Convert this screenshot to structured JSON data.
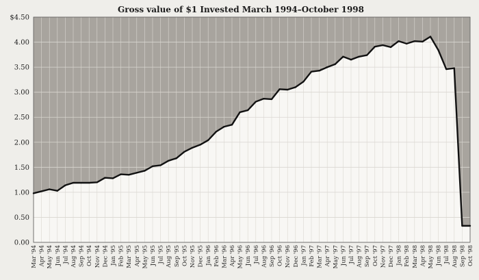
{
  "chart_data": {
    "type": "area",
    "title": "Gross value of $1 Invested March 1994–October 1998",
    "xlabel": "",
    "ylabel": "",
    "ylim": [
      0,
      4.5
    ],
    "y_ticks": [
      "0.00",
      "0.50",
      "1.00",
      "1.50",
      "2.00",
      "2.50",
      "3.00",
      "3.50",
      "4.00",
      "$4.50"
    ],
    "y_tick_values": [
      0,
      0.5,
      1.0,
      1.5,
      2.0,
      2.5,
      3.0,
      3.5,
      4.0,
      4.5
    ],
    "grid": true,
    "legend": "none",
    "colors": {
      "above_line": "#a8a49e",
      "below_line": "#f8f7f4",
      "line": "#111111",
      "grid": "#ffffff"
    },
    "categories": [
      "Mar '94",
      "Apr '94",
      "May '94",
      "Jun '94",
      "Jul '94",
      "Aug '94",
      "Sep '94",
      "Oct '94",
      "Nov '94",
      "Dec '94",
      "Jan '95",
      "Feb '95",
      "Mar '95",
      "Apr '95",
      "May '95",
      "Jun '95",
      "Jul '95",
      "Aug '95",
      "Sep '95",
      "Oct '95",
      "Nov '95",
      "Dec '95",
      "Jan '96",
      "Feb '96",
      "Mar '96",
      "Apr '96",
      "May '96",
      "Jun '96",
      "Jul '96",
      "Aug '96",
      "Sep '96",
      "Oct '96",
      "Nov '96",
      "Dec '96",
      "Jan '97",
      "Feb '97",
      "Mar '97",
      "Apr '97",
      "May '97",
      "Jun '97",
      "Jul '97",
      "Aug '97",
      "Sep '97",
      "Oct '97",
      "Nov '97",
      "Dec '97",
      "Jan '98",
      "Feb '98",
      "Mar '98",
      "Apr '98",
      "May '98",
      "Jun '98",
      "Jul '98",
      "Aug '98",
      "Sep '98",
      "Oct '98"
    ],
    "values": [
      0.98,
      1.02,
      1.06,
      1.03,
      1.14,
      1.19,
      1.19,
      1.19,
      1.2,
      1.29,
      1.28,
      1.36,
      1.35,
      1.39,
      1.43,
      1.52,
      1.54,
      1.63,
      1.68,
      1.81,
      1.89,
      1.95,
      2.04,
      2.21,
      2.31,
      2.35,
      2.6,
      2.64,
      2.81,
      2.87,
      2.86,
      3.06,
      3.05,
      3.1,
      3.21,
      3.41,
      3.43,
      3.5,
      3.56,
      3.71,
      3.65,
      3.71,
      3.74,
      3.91,
      3.94,
      3.9,
      4.02,
      3.97,
      4.02,
      4.01,
      4.11,
      3.84,
      3.46,
      3.48,
      0.33,
      0.33
    ]
  }
}
